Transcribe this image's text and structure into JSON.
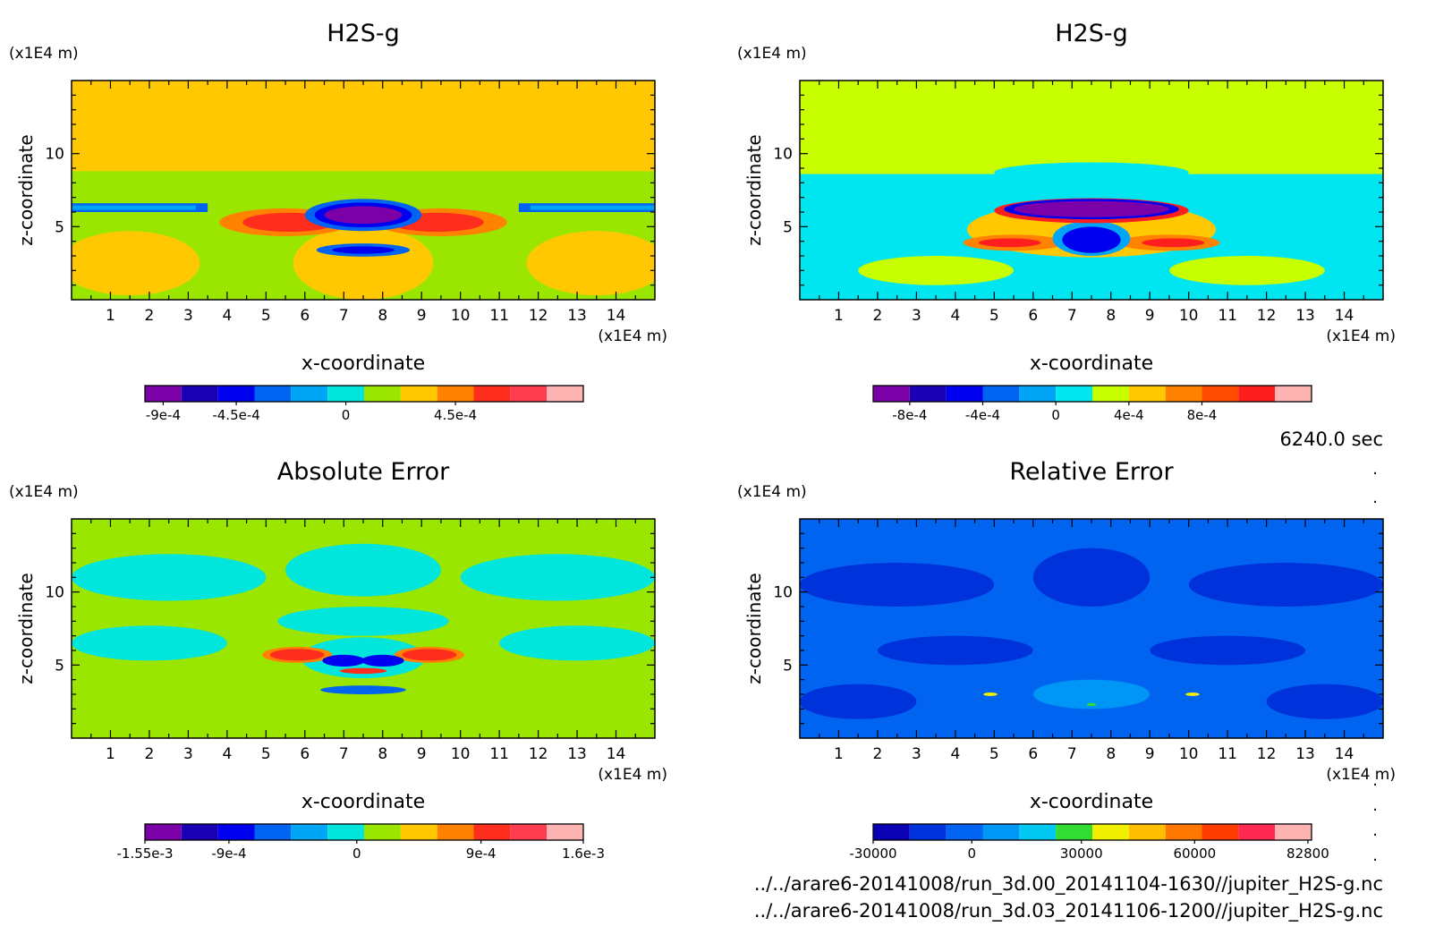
{
  "time_label": "6240.0 sec",
  "file_paths": [
    "../../arare6-20141008/run_3d.00_20141104-1630//jupiter_H2S-g.nc",
    "../../arare6-20141008/run_3d.03_20141106-1200//jupiter_H2S-g.nc"
  ],
  "chart_data": [
    {
      "type": "heatmap",
      "title": "H2S-g",
      "xlabel": "x-coordinate",
      "ylabel": "z-coordinate",
      "x_unit": "(x1E4 m)",
      "y_unit": "(x1E4 m)",
      "xlim": [
        0,
        15
      ],
      "ylim": [
        0,
        15
      ],
      "xticks": [
        "1",
        "2",
        "3",
        "4",
        "5",
        "6",
        "7",
        "8",
        "9",
        "10",
        "11",
        "12",
        "13",
        "14"
      ],
      "yticks": [
        "5",
        "10"
      ],
      "colorbar": {
        "colors": [
          "#7b00a8",
          "#1a00b4",
          "#0000f0",
          "#0064f0",
          "#00a5f5",
          "#00e6dc",
          "#9be600",
          "#ffc800",
          "#ff8200",
          "#ff2d1e",
          "#ff3c50",
          "#ffb4b4"
        ],
        "labels": [
          "-9e-4",
          "-4.5e-4",
          "0",
          "4.5e-4"
        ],
        "label_positions": [
          0.5,
          2.5,
          5.5,
          8.5
        ]
      },
      "background": "#ffc800",
      "features": [
        {
          "shape": "rect",
          "x0": 0,
          "x1": 15,
          "y0": 0,
          "y1": 8.8,
          "color": "#9be600"
        },
        {
          "shape": "ellipse",
          "cx": 1.5,
          "cy": 2.5,
          "rx": 1.8,
          "ry": 2.2,
          "color": "#ffc800"
        },
        {
          "shape": "ellipse",
          "cx": 13.5,
          "cy": 2.5,
          "rx": 1.8,
          "ry": 2.2,
          "color": "#ffc800"
        },
        {
          "shape": "ellipse",
          "cx": 7.5,
          "cy": 2.5,
          "rx": 1.8,
          "ry": 2.5,
          "color": "#ffc800"
        },
        {
          "shape": "rect",
          "x0": 0,
          "x1": 3.5,
          "y0": 6.0,
          "y1": 6.6,
          "color": "#0064f0"
        },
        {
          "shape": "rect",
          "x0": 11.5,
          "x1": 15,
          "y0": 6.0,
          "y1": 6.6,
          "color": "#0064f0"
        },
        {
          "shape": "rect",
          "x0": 0,
          "x1": 3.2,
          "y0": 6.15,
          "y1": 6.45,
          "color": "#00a5f5"
        },
        {
          "shape": "rect",
          "x0": 11.8,
          "x1": 15,
          "y0": 6.15,
          "y1": 6.45,
          "color": "#00a5f5"
        },
        {
          "shape": "ellipse",
          "cx": 5.5,
          "cy": 5.3,
          "rx": 1.7,
          "ry": 0.95,
          "color": "#ff8200"
        },
        {
          "shape": "ellipse",
          "cx": 9.5,
          "cy": 5.3,
          "rx": 1.7,
          "ry": 0.95,
          "color": "#ff8200"
        },
        {
          "shape": "ellipse",
          "cx": 5.6,
          "cy": 5.3,
          "rx": 1.2,
          "ry": 0.65,
          "color": "#ff2d1e"
        },
        {
          "shape": "ellipse",
          "cx": 9.4,
          "cy": 5.3,
          "rx": 1.2,
          "ry": 0.65,
          "color": "#ff2d1e"
        },
        {
          "shape": "ellipse",
          "cx": 7.5,
          "cy": 5.8,
          "rx": 1.5,
          "ry": 1.1,
          "color": "#0064f0"
        },
        {
          "shape": "ellipse",
          "cx": 7.5,
          "cy": 5.8,
          "rx": 1.25,
          "ry": 0.85,
          "color": "#0000f0"
        },
        {
          "shape": "ellipse",
          "cx": 7.5,
          "cy": 5.8,
          "rx": 1.0,
          "ry": 0.6,
          "color": "#7b00a8"
        },
        {
          "shape": "ellipse",
          "cx": 7.5,
          "cy": 3.4,
          "rx": 1.2,
          "ry": 0.45,
          "color": "#0064f0"
        },
        {
          "shape": "ellipse",
          "cx": 7.5,
          "cy": 3.4,
          "rx": 0.8,
          "ry": 0.25,
          "color": "#0000f0"
        }
      ]
    },
    {
      "type": "heatmap",
      "title": "H2S-g",
      "xlabel": "x-coordinate",
      "ylabel": "z-coordinate",
      "x_unit": "(x1E4 m)",
      "y_unit": "(x1E4 m)",
      "xlim": [
        0,
        15
      ],
      "ylim": [
        0,
        15
      ],
      "xticks": [
        "1",
        "2",
        "3",
        "4",
        "5",
        "6",
        "7",
        "8",
        "9",
        "10",
        "11",
        "12",
        "13",
        "14"
      ],
      "yticks": [
        "5",
        "10"
      ],
      "colorbar": {
        "colors": [
          "#7b00a8",
          "#1a00b4",
          "#0000f0",
          "#0064f0",
          "#00a5f5",
          "#00e6f0",
          "#c8ff00",
          "#ffc800",
          "#ff8200",
          "#ff4b00",
          "#ff1e1e",
          "#ffb4b4"
        ],
        "labels": [
          "-8e-4",
          "-4e-4",
          "0",
          "4e-4",
          "8e-4"
        ],
        "label_positions": [
          1.0,
          3.0,
          5.0,
          7.0,
          9.0
        ]
      },
      "background": "#c8ff00",
      "features": [
        {
          "shape": "rect",
          "x0": 0,
          "x1": 15,
          "y0": 0,
          "y1": 8.6,
          "color": "#00e6f0"
        },
        {
          "shape": "ellipse",
          "cx": 7.5,
          "cy": 8.7,
          "rx": 2.5,
          "ry": 0.7,
          "color": "#00e6f0"
        },
        {
          "shape": "ellipse",
          "cx": 3.5,
          "cy": 2.0,
          "rx": 2.0,
          "ry": 1.0,
          "color": "#c8ff00"
        },
        {
          "shape": "ellipse",
          "cx": 11.5,
          "cy": 2.0,
          "rx": 2.0,
          "ry": 1.0,
          "color": "#c8ff00"
        },
        {
          "shape": "ellipse",
          "cx": 7.5,
          "cy": 4.8,
          "rx": 3.2,
          "ry": 1.9,
          "color": "#ffc800"
        },
        {
          "shape": "ellipse",
          "cx": 5.5,
          "cy": 3.9,
          "rx": 1.3,
          "ry": 0.55,
          "color": "#ff8200"
        },
        {
          "shape": "ellipse",
          "cx": 9.5,
          "cy": 3.9,
          "rx": 1.3,
          "ry": 0.55,
          "color": "#ff8200"
        },
        {
          "shape": "ellipse",
          "cx": 5.4,
          "cy": 3.9,
          "rx": 0.8,
          "ry": 0.3,
          "color": "#ff1e1e"
        },
        {
          "shape": "ellipse",
          "cx": 9.6,
          "cy": 3.9,
          "rx": 0.8,
          "ry": 0.3,
          "color": "#ff1e1e"
        },
        {
          "shape": "ellipse",
          "cx": 7.5,
          "cy": 4.2,
          "rx": 1.0,
          "ry": 1.2,
          "color": "#00a5f5"
        },
        {
          "shape": "ellipse",
          "cx": 7.5,
          "cy": 4.1,
          "rx": 0.75,
          "ry": 0.9,
          "color": "#0000f0"
        },
        {
          "shape": "ellipse",
          "cx": 7.5,
          "cy": 6.1,
          "rx": 2.5,
          "ry": 0.85,
          "color": "#ff1e1e"
        },
        {
          "shape": "ellipse",
          "cx": 7.5,
          "cy": 6.2,
          "rx": 2.25,
          "ry": 0.7,
          "color": "#0000f0"
        },
        {
          "shape": "ellipse",
          "cx": 7.5,
          "cy": 6.2,
          "rx": 2.0,
          "ry": 0.55,
          "color": "#7b00a8"
        }
      ]
    },
    {
      "type": "heatmap",
      "title": "Absolute Error",
      "xlabel": "x-coordinate",
      "ylabel": "z-coordinate",
      "x_unit": "(x1E4 m)",
      "y_unit": "(x1E4 m)",
      "xlim": [
        0,
        15
      ],
      "ylim": [
        0,
        15
      ],
      "xticks": [
        "1",
        "2",
        "3",
        "4",
        "5",
        "6",
        "7",
        "8",
        "9",
        "10",
        "11",
        "12",
        "13",
        "14"
      ],
      "yticks": [
        "5",
        "10"
      ],
      "colorbar": {
        "colors": [
          "#7b00a8",
          "#1a00b4",
          "#0000f0",
          "#0064f0",
          "#00a5f5",
          "#00e6dc",
          "#9be600",
          "#ffc800",
          "#ff8200",
          "#ff2d1e",
          "#ff3c50",
          "#ffb4b4"
        ],
        "labels": [
          "-1.55e-3",
          "-9e-4",
          "0",
          "9e-4",
          "1.6e-3"
        ],
        "label_positions": [
          0.0,
          2.3,
          5.8,
          9.2,
          12.0
        ]
      },
      "background": "#9be600",
      "features": [
        {
          "shape": "ellipse",
          "cx": 2.5,
          "cy": 11.0,
          "rx": 2.5,
          "ry": 1.6,
          "color": "#00e6dc"
        },
        {
          "shape": "ellipse",
          "cx": 12.5,
          "cy": 11.0,
          "rx": 2.5,
          "ry": 1.6,
          "color": "#00e6dc"
        },
        {
          "shape": "ellipse",
          "cx": 7.5,
          "cy": 11.5,
          "rx": 2.0,
          "ry": 1.8,
          "color": "#00e6dc"
        },
        {
          "shape": "ellipse",
          "cx": 2.0,
          "cy": 6.5,
          "rx": 2.0,
          "ry": 1.2,
          "color": "#00e6dc"
        },
        {
          "shape": "ellipse",
          "cx": 13.0,
          "cy": 6.5,
          "rx": 2.0,
          "ry": 1.2,
          "color": "#00e6dc"
        },
        {
          "shape": "ellipse",
          "cx": 7.5,
          "cy": 8.0,
          "rx": 2.2,
          "ry": 1.0,
          "color": "#00e6dc"
        },
        {
          "shape": "ellipse",
          "cx": 7.5,
          "cy": 5.5,
          "rx": 1.6,
          "ry": 1.4,
          "color": "#00e6dc"
        },
        {
          "shape": "ellipse",
          "cx": 7.5,
          "cy": 2.0,
          "rx": 2.5,
          "ry": 1.4,
          "color": "#9be600"
        },
        {
          "shape": "ellipse",
          "cx": 5.8,
          "cy": 5.7,
          "rx": 0.9,
          "ry": 0.55,
          "color": "#ff8200"
        },
        {
          "shape": "ellipse",
          "cx": 9.2,
          "cy": 5.7,
          "rx": 0.9,
          "ry": 0.55,
          "color": "#ff8200"
        },
        {
          "shape": "ellipse",
          "cx": 5.8,
          "cy": 5.7,
          "rx": 0.7,
          "ry": 0.4,
          "color": "#ff2d1e"
        },
        {
          "shape": "ellipse",
          "cx": 9.2,
          "cy": 5.7,
          "rx": 0.7,
          "ry": 0.4,
          "color": "#ff2d1e"
        },
        {
          "shape": "ellipse",
          "cx": 7.0,
          "cy": 5.3,
          "rx": 0.55,
          "ry": 0.4,
          "color": "#0000f0"
        },
        {
          "shape": "ellipse",
          "cx": 8.0,
          "cy": 5.3,
          "rx": 0.55,
          "ry": 0.4,
          "color": "#0000f0"
        },
        {
          "shape": "ellipse",
          "cx": 7.5,
          "cy": 4.6,
          "rx": 0.6,
          "ry": 0.2,
          "color": "#ff2d1e"
        },
        {
          "shape": "ellipse",
          "cx": 7.5,
          "cy": 3.3,
          "rx": 1.1,
          "ry": 0.3,
          "color": "#0064f0"
        }
      ]
    },
    {
      "type": "heatmap",
      "title": "Relative Error",
      "xlabel": "x-coordinate",
      "ylabel": "z-coordinate",
      "x_unit": "(x1E4 m)",
      "y_unit": "(x1E4 m)",
      "xlim": [
        0,
        15
      ],
      "ylim": [
        0,
        15
      ],
      "xticks": [
        "1",
        "2",
        "3",
        "4",
        "5",
        "6",
        "7",
        "8",
        "9",
        "10",
        "11",
        "12",
        "13",
        "14"
      ],
      "yticks": [
        "5",
        "10"
      ],
      "colorbar": {
        "colors": [
          "#0a00b4",
          "#0032dc",
          "#0064f0",
          "#0096f5",
          "#00c8f0",
          "#32dc32",
          "#f0f000",
          "#ffbe00",
          "#ff7800",
          "#ff3c00",
          "#ff2850",
          "#ffb4b4"
        ],
        "labels": [
          "-30000",
          "0",
          "30000",
          "60000",
          "82800"
        ],
        "label_positions": [
          0.0,
          2.7,
          5.7,
          8.8,
          11.9
        ]
      },
      "background": "#0064f0",
      "features": [
        {
          "shape": "ellipse",
          "cx": 2.5,
          "cy": 10.5,
          "rx": 2.5,
          "ry": 1.5,
          "color": "#0032dc"
        },
        {
          "shape": "ellipse",
          "cx": 12.5,
          "cy": 10.5,
          "rx": 2.5,
          "ry": 1.5,
          "color": "#0032dc"
        },
        {
          "shape": "ellipse",
          "cx": 7.5,
          "cy": 11.0,
          "rx": 1.5,
          "ry": 2.0,
          "color": "#0032dc"
        },
        {
          "shape": "ellipse",
          "cx": 4.0,
          "cy": 6.0,
          "rx": 2.0,
          "ry": 1.0,
          "color": "#0032dc"
        },
        {
          "shape": "ellipse",
          "cx": 11.0,
          "cy": 6.0,
          "rx": 2.0,
          "ry": 1.0,
          "color": "#0032dc"
        },
        {
          "shape": "ellipse",
          "cx": 1.5,
          "cy": 2.5,
          "rx": 1.5,
          "ry": 1.2,
          "color": "#0032dc"
        },
        {
          "shape": "ellipse",
          "cx": 13.5,
          "cy": 2.5,
          "rx": 1.5,
          "ry": 1.2,
          "color": "#0032dc"
        },
        {
          "shape": "ellipse",
          "cx": 7.5,
          "cy": 3.0,
          "rx": 1.5,
          "ry": 1.0,
          "color": "#0096f5"
        },
        {
          "shape": "ellipse",
          "cx": 4.9,
          "cy": 3.0,
          "rx": 0.18,
          "ry": 0.12,
          "color": "#f0f000"
        },
        {
          "shape": "ellipse",
          "cx": 10.1,
          "cy": 3.0,
          "rx": 0.18,
          "ry": 0.12,
          "color": "#f0f000"
        },
        {
          "shape": "ellipse",
          "cx": 7.5,
          "cy": 2.3,
          "rx": 0.12,
          "ry": 0.1,
          "color": "#32dc32"
        }
      ]
    }
  ]
}
